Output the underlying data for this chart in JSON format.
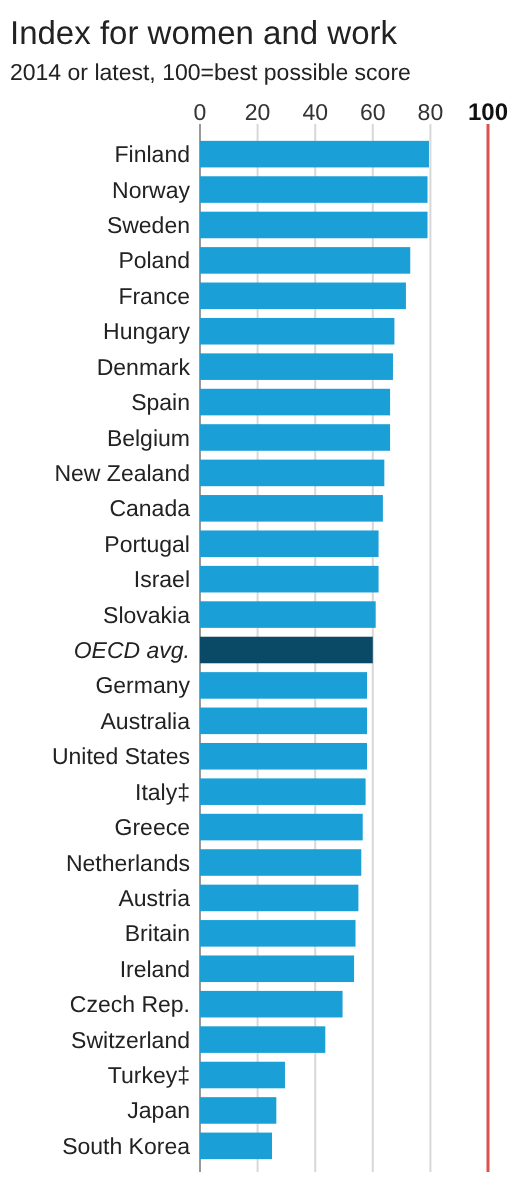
{
  "chart_data": {
    "type": "bar",
    "orientation": "horizontal",
    "title": "Index for women and work",
    "subtitle": "2014 or latest, 100=best possible score",
    "categories": [
      "Finland",
      "Norway",
      "Sweden",
      "Poland",
      "France",
      "Hungary",
      "Denmark",
      "Spain",
      "Belgium",
      "New Zealand",
      "Canada",
      "Portugal",
      "Israel",
      "Slovakia",
      "OECD avg.",
      "Germany",
      "Australia",
      "United States",
      "Italy‡",
      "Greece",
      "Netherlands",
      "Austria",
      "Britain",
      "Ireland",
      "Czech Rep.",
      "Switzerland",
      "Turkey‡",
      "Japan",
      "South Korea"
    ],
    "values": [
      79.5,
      79,
      79,
      73,
      71.5,
      67.5,
      67,
      66,
      66,
      64,
      63.5,
      62,
      62,
      61,
      60,
      58,
      58,
      58,
      57.5,
      56.5,
      56,
      55,
      54,
      53.5,
      49.5,
      43.5,
      29.5,
      26.5,
      25
    ],
    "colors": [
      "#1a9fd6",
      "#1a9fd6",
      "#1a9fd6",
      "#1a9fd6",
      "#1a9fd6",
      "#1a9fd6",
      "#1a9fd6",
      "#1a9fd6",
      "#1a9fd6",
      "#1a9fd6",
      "#1a9fd6",
      "#1a9fd6",
      "#1a9fd6",
      "#1a9fd6",
      "#0b4a66",
      "#1a9fd6",
      "#1a9fd6",
      "#1a9fd6",
      "#1a9fd6",
      "#1a9fd6",
      "#1a9fd6",
      "#1a9fd6",
      "#1a9fd6",
      "#1a9fd6",
      "#1a9fd6",
      "#1a9fd6",
      "#1a9fd6",
      "#1a9fd6",
      "#1a9fd6"
    ],
    "xlim": [
      0,
      100
    ],
    "xticks": [
      0,
      20,
      40,
      60,
      80
    ],
    "grid": "x",
    "ref_lines": [
      {
        "axis": "x",
        "value": 100,
        "label": "100",
        "color": "#d9534f"
      }
    ]
  }
}
